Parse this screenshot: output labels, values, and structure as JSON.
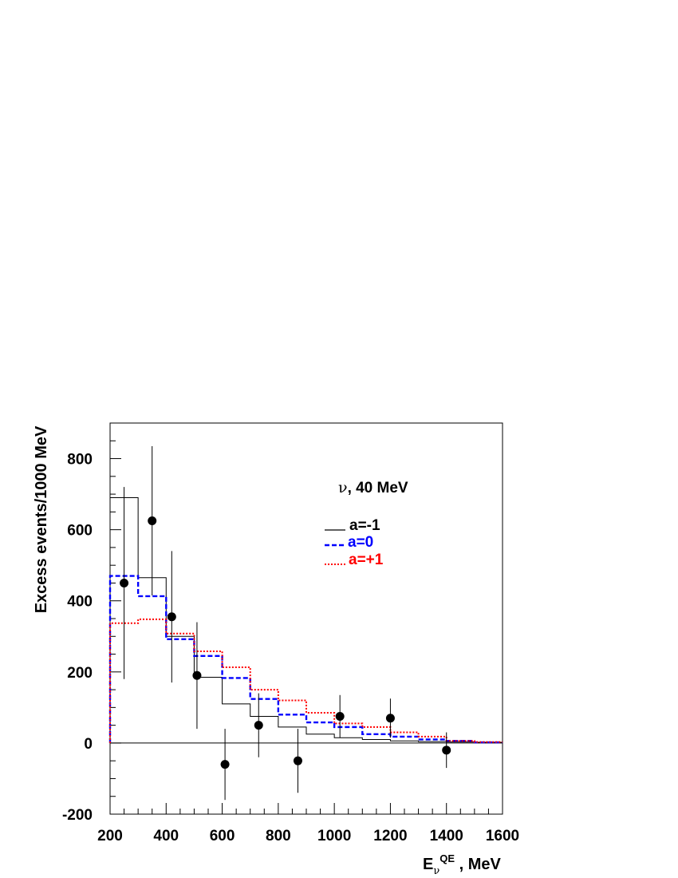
{
  "chart_data": {
    "type": "line",
    "annotation": {
      "symbol": "ν",
      "text": ", 40 MeV"
    },
    "xlabel": {
      "main": "E",
      "sub": "ν",
      "sup": "QE",
      "rest": " , MeV"
    },
    "ylabel": "Excess events/1000 MeV",
    "xlim": [
      200,
      1600
    ],
    "ylim": [
      -200,
      900
    ],
    "xticks": [
      200,
      400,
      600,
      800,
      1000,
      1200,
      1400,
      1600
    ],
    "xtick_labels": [
      "200",
      "400",
      "600",
      "800",
      "1000",
      "1200",
      "1400",
      "1600"
    ],
    "yticks": [
      -200,
      0,
      200,
      400,
      600,
      800
    ],
    "ytick_labels": [
      "-200",
      "0",
      "200",
      "400",
      "600",
      "800"
    ],
    "grid": false,
    "legend_position": "upper-right",
    "series": [
      {
        "name": "a=-1",
        "style": "solid",
        "color": "#000000",
        "bin_edges": [
          200,
          300,
          400,
          500,
          600,
          700,
          800,
          900,
          1000,
          1100,
          1200,
          1300,
          1400,
          1500,
          1600
        ],
        "values": [
          690,
          465,
          300,
          185,
          110,
          75,
          45,
          25,
          15,
          10,
          6,
          4,
          3,
          2
        ]
      },
      {
        "name": "a=0",
        "style": "dashed",
        "color": "#0000ff",
        "bin_edges": [
          200,
          300,
          400,
          500,
          600,
          700,
          800,
          900,
          1000,
          1100,
          1200,
          1300,
          1400,
          1500,
          1600
        ],
        "values": [
          470,
          413,
          292,
          245,
          183,
          124,
          80,
          58,
          45,
          25,
          18,
          10,
          6,
          2
        ]
      },
      {
        "name": "a=+1",
        "style": "dotted",
        "color": "#ff0000",
        "bin_edges": [
          200,
          300,
          400,
          500,
          600,
          700,
          800,
          900,
          1000,
          1100,
          1200,
          1300,
          1400,
          1500,
          1600
        ],
        "values": [
          337,
          348,
          308,
          258,
          213,
          150,
          120,
          85,
          55,
          45,
          30,
          18,
          6,
          3
        ]
      }
    ],
    "data_points": [
      {
        "x": 250,
        "y": 450,
        "err": 270
      },
      {
        "x": 350,
        "y": 625,
        "err": 210
      },
      {
        "x": 420,
        "y": 355,
        "err": 185
      },
      {
        "x": 510,
        "y": 190,
        "err": 150
      },
      {
        "x": 610,
        "y": -60,
        "err": 100
      },
      {
        "x": 730,
        "y": 50,
        "err": 90
      },
      {
        "x": 870,
        "y": -50,
        "err": 90
      },
      {
        "x": 1020,
        "y": 75,
        "err": 60
      },
      {
        "x": 1200,
        "y": 70,
        "err": 55
      },
      {
        "x": 1400,
        "y": -20,
        "err": 50
      }
    ]
  }
}
